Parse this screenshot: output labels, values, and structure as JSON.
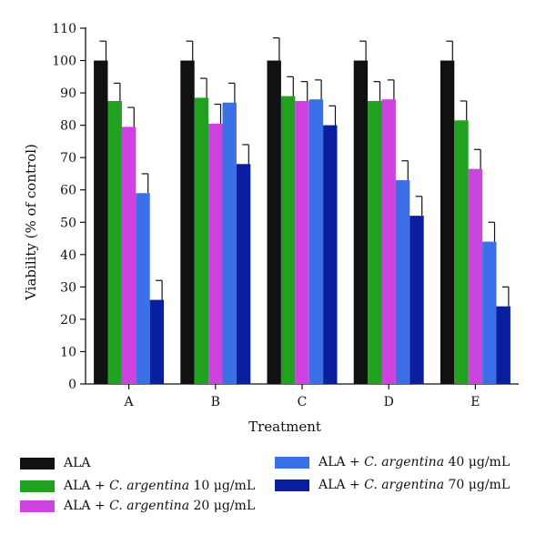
{
  "chart_data": {
    "type": "bar",
    "categories": [
      "A",
      "B",
      "C",
      "D",
      "E"
    ],
    "xlabel": "Treatment",
    "ylabel": "Viability (% of control)",
    "ylim": [
      0,
      110
    ],
    "yticks": [
      0,
      10,
      20,
      30,
      40,
      50,
      60,
      70,
      80,
      90,
      100,
      110
    ],
    "grid": false,
    "legend_position": "bottom",
    "series": [
      {
        "name": "ALA",
        "color": "#111111",
        "values": [
          100,
          100,
          100,
          100,
          100
        ],
        "errors": [
          6,
          6,
          7,
          6,
          6
        ]
      },
      {
        "name": "ALA + C. argentina 10 μg/mL",
        "color": "#22a022",
        "values": [
          87.5,
          88.5,
          89,
          87.5,
          81.5
        ],
        "errors": [
          5.5,
          6,
          6,
          6,
          6
        ]
      },
      {
        "name": "ALA + C. argentina 20 μg/mL",
        "color": "#cc44dd",
        "values": [
          79.5,
          80.5,
          87.5,
          88,
          66.5
        ],
        "errors": [
          6,
          6,
          6,
          6,
          6
        ]
      },
      {
        "name": "ALA + C. argentina 40 μg/mL",
        "color": "#3b6fe8",
        "values": [
          59,
          87,
          88,
          63,
          44
        ],
        "errors": [
          6,
          6,
          6,
          6,
          6
        ]
      },
      {
        "name": "ALA + C. argentina 70 μg/mL",
        "color": "#0a1ea0",
        "values": [
          26,
          68,
          80,
          52,
          24
        ],
        "errors": [
          6,
          6,
          6,
          6,
          6
        ]
      }
    ]
  },
  "legend": {
    "items": [
      {
        "prefix": "ALA",
        "species": "",
        "dose": ""
      },
      {
        "prefix": "ALA + ",
        "species": "C. argentina",
        "dose": " 10 μg/mL"
      },
      {
        "prefix": "ALA + ",
        "species": "C. argentina",
        "dose": " 20 μg/mL"
      },
      {
        "prefix": "ALA + ",
        "species": "C. argentina",
        "dose": " 40 μg/mL"
      },
      {
        "prefix": "ALA + ",
        "species": "C. argentina",
        "dose": " 70 μg/mL"
      }
    ]
  }
}
